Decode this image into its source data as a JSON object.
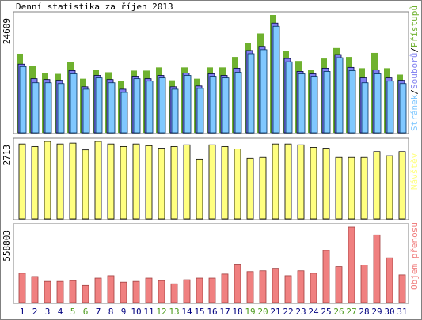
{
  "chart_data": [
    {
      "type": "bar",
      "title": "Denní statistika za říjen 2013",
      "legend_separator": "/",
      "ylim": [
        0,
        24609
      ],
      "yticks": [
        24609
      ],
      "series": [
        {
          "name": "Přístupů",
          "color": "#6fb12f",
          "values": [
            16520,
            13990,
            12470,
            12300,
            14830,
            11290,
            13150,
            12640,
            10790,
            12980,
            12980,
            13650,
            10960,
            13650,
            11290,
            13650,
            13650,
            15840,
            18710,
            20730,
            24609,
            17020,
            15000,
            13150,
            15510,
            17700,
            15840,
            13480,
            16690,
            13480,
            12140
          ]
        },
        {
          "name": "Souborů",
          "color": "#7f7ff0",
          "edgecolor": "#000040",
          "values": [
            14330,
            11290,
            11120,
            10960,
            12980,
            9610,
            11970,
            11120,
            9100,
            11800,
            11290,
            11970,
            9610,
            12470,
            9780,
            12300,
            11970,
            13480,
            17190,
            18040,
            22920,
            15510,
            12810,
            12300,
            13480,
            16350,
            13650,
            11460,
            13150,
            11460,
            10960
          ]
        },
        {
          "name": "Stránek",
          "color": "#80c8ff",
          "edgecolor": "#003060",
          "values": [
            13820,
            10450,
            10450,
            10280,
            12300,
            9100,
            11460,
            10450,
            8430,
            11290,
            10790,
            11460,
            9100,
            11970,
            9270,
            11800,
            11460,
            12640,
            16520,
            17360,
            22250,
            14830,
            12300,
            11800,
            12810,
            15680,
            12980,
            10450,
            12300,
            10790,
            10280
          ]
        }
      ]
    },
    {
      "type": "bar",
      "ylim": [
        0,
        2713
      ],
      "yticks": [
        2713
      ],
      "series": [
        {
          "name": "Návštěv",
          "color": "#ffff80",
          "edgecolor": "#000000",
          "values": [
            2625,
            2536,
            2713,
            2625,
            2654,
            2418,
            2713,
            2625,
            2536,
            2625,
            2566,
            2477,
            2536,
            2595,
            2094,
            2595,
            2536,
            2448,
            2123,
            2153,
            2625,
            2625,
            2595,
            2507,
            2477,
            2153,
            2153,
            2153,
            2359,
            2212,
            2359
          ]
        }
      ]
    },
    {
      "type": "bar",
      "ylim": [
        0,
        558803
      ],
      "yticks": [
        558803
      ],
      "categories": [
        "1",
        "2",
        "3",
        "4",
        "5",
        "6",
        "7",
        "8",
        "9",
        "10",
        "11",
        "12",
        "13",
        "14",
        "15",
        "16",
        "17",
        "18",
        "19",
        "20",
        "21",
        "22",
        "23",
        "24",
        "25",
        "26",
        "27",
        "28",
        "29",
        "30",
        "31"
      ],
      "label_colors": [
        "#000080",
        "#000080",
        "#000080",
        "#000080",
        "#4a9a1a",
        "#4a9a1a",
        "#000080",
        "#000080",
        "#000080",
        "#000080",
        "#000080",
        "#4a9a1a",
        "#4a9a1a",
        "#000080",
        "#000080",
        "#000080",
        "#000080",
        "#000080",
        "#4a9a1a",
        "#4a9a1a",
        "#000080",
        "#000080",
        "#000080",
        "#000080",
        "#000080",
        "#4a9a1a",
        "#4a9a1a",
        "#000080",
        "#000080",
        "#000080",
        "#000080"
      ],
      "series": [
        {
          "name": "Objem přenosu",
          "color": "#f08080",
          "edgecolor": "#a04040",
          "values": [
            216320,
            192290,
            156230,
            156230,
            162240,
            126190,
            180270,
            198300,
            150230,
            156230,
            180270,
            162240,
            138210,
            168250,
            180270,
            180270,
            210320,
            282420,
            228340,
            234350,
            252380,
            198300,
            234350,
            216320,
            384580,
            264400,
            558803,
            276410,
            498750,
            330500,
            204310
          ]
        }
      ]
    }
  ]
}
